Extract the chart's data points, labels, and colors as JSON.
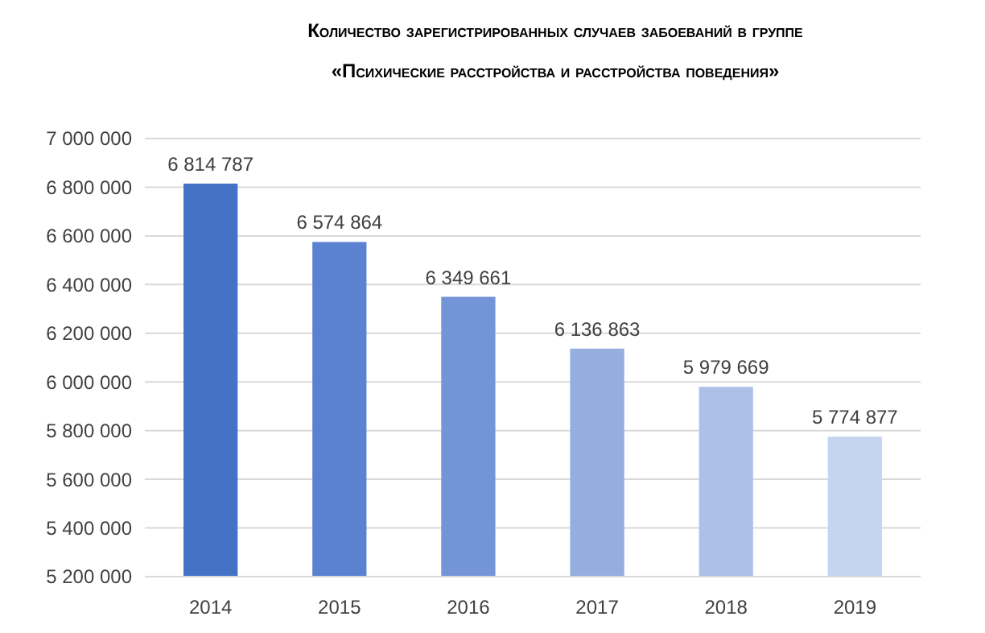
{
  "chart_data": {
    "type": "bar",
    "title": "Количество зарегистрированных случаев забоеваний в группе\n«Психические расстройства и расстройства поведения»",
    "categories": [
      "2014",
      "2015",
      "2016",
      "2017",
      "2018",
      "2019"
    ],
    "values": [
      6814787,
      6574864,
      6349661,
      6136863,
      5979669,
      5774877
    ],
    "colors": [
      "#4472c4",
      "#5a82d0",
      "#7394d6",
      "#94aee0",
      "#adc1e8",
      "#c5d4f0"
    ],
    "value_labels": [
      "6 814 787",
      "6 574 864",
      "6 349 661",
      "6 136 863",
      "5 979 669",
      "5 774 877"
    ],
    "ylim": [
      5200000,
      7000000
    ],
    "yticks": [
      {
        "value": 5200000,
        "label": "5 200 000"
      },
      {
        "value": 5400000,
        "label": "5 400 000"
      },
      {
        "value": 5600000,
        "label": "5 600 000"
      },
      {
        "value": 5800000,
        "label": "5 800 000"
      },
      {
        "value": 6000000,
        "label": "6 000 000"
      },
      {
        "value": 6200000,
        "label": "6 200 000"
      },
      {
        "value": 6400000,
        "label": "6 400 000"
      },
      {
        "value": 6600000,
        "label": "6 600 000"
      },
      {
        "value": 6800000,
        "label": "6 800 000"
      },
      {
        "value": 7000000,
        "label": "7 000 000"
      }
    ],
    "grid": "y"
  }
}
